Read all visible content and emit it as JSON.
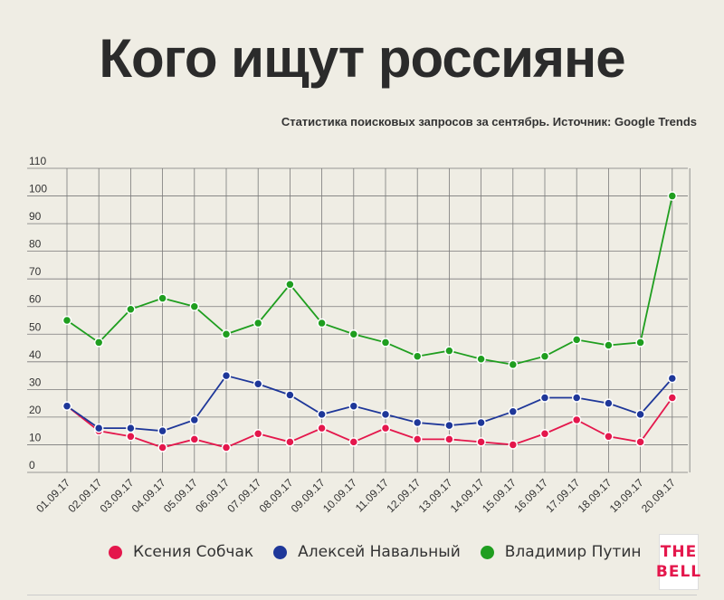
{
  "title": "Кого ищут россияне",
  "subtitle": "Статистика поисковых запросов за сентябрь. Источник: Google Trends",
  "logo": {
    "line1": "THE",
    "line2": "BELL",
    "color": "#e4174c"
  },
  "chart_data": {
    "type": "line",
    "categories": [
      "01.09.17",
      "02.09.17",
      "03.09.17",
      "04.09.17",
      "05.09.17",
      "06.09.17",
      "07.09.17",
      "08.09.17",
      "09.09.17",
      "10.09.17",
      "11.09.17",
      "12.09.17",
      "13.09.17",
      "14.09.17",
      "15.09.17",
      "16.09.17",
      "17.09.17",
      "18.09.17",
      "19.09.17",
      "20.09.17"
    ],
    "ylim": [
      0,
      110
    ],
    "yticks": [
      0,
      10,
      20,
      30,
      40,
      50,
      60,
      70,
      80,
      90,
      100,
      110
    ],
    "grid": true,
    "legend_position": "bottom",
    "series": [
      {
        "name": "Ксения Собчак",
        "color": "#e4174c",
        "values": [
          24,
          15,
          13,
          9,
          12,
          9,
          14,
          11,
          16,
          11,
          16,
          12,
          12,
          11,
          10,
          14,
          19,
          13,
          11,
          27
        ]
      },
      {
        "name": "Алексей Навальный",
        "color": "#1e3799",
        "values": [
          24,
          16,
          16,
          15,
          19,
          35,
          32,
          28,
          21,
          24,
          21,
          18,
          17,
          18,
          22,
          27,
          27,
          25,
          21,
          34
        ]
      },
      {
        "name": "Владимир Путин",
        "color": "#1f9e1f",
        "values": [
          55,
          47,
          59,
          63,
          60,
          50,
          54,
          68,
          54,
          50,
          47,
          42,
          44,
          41,
          39,
          42,
          48,
          46,
          47,
          100
        ]
      }
    ]
  }
}
